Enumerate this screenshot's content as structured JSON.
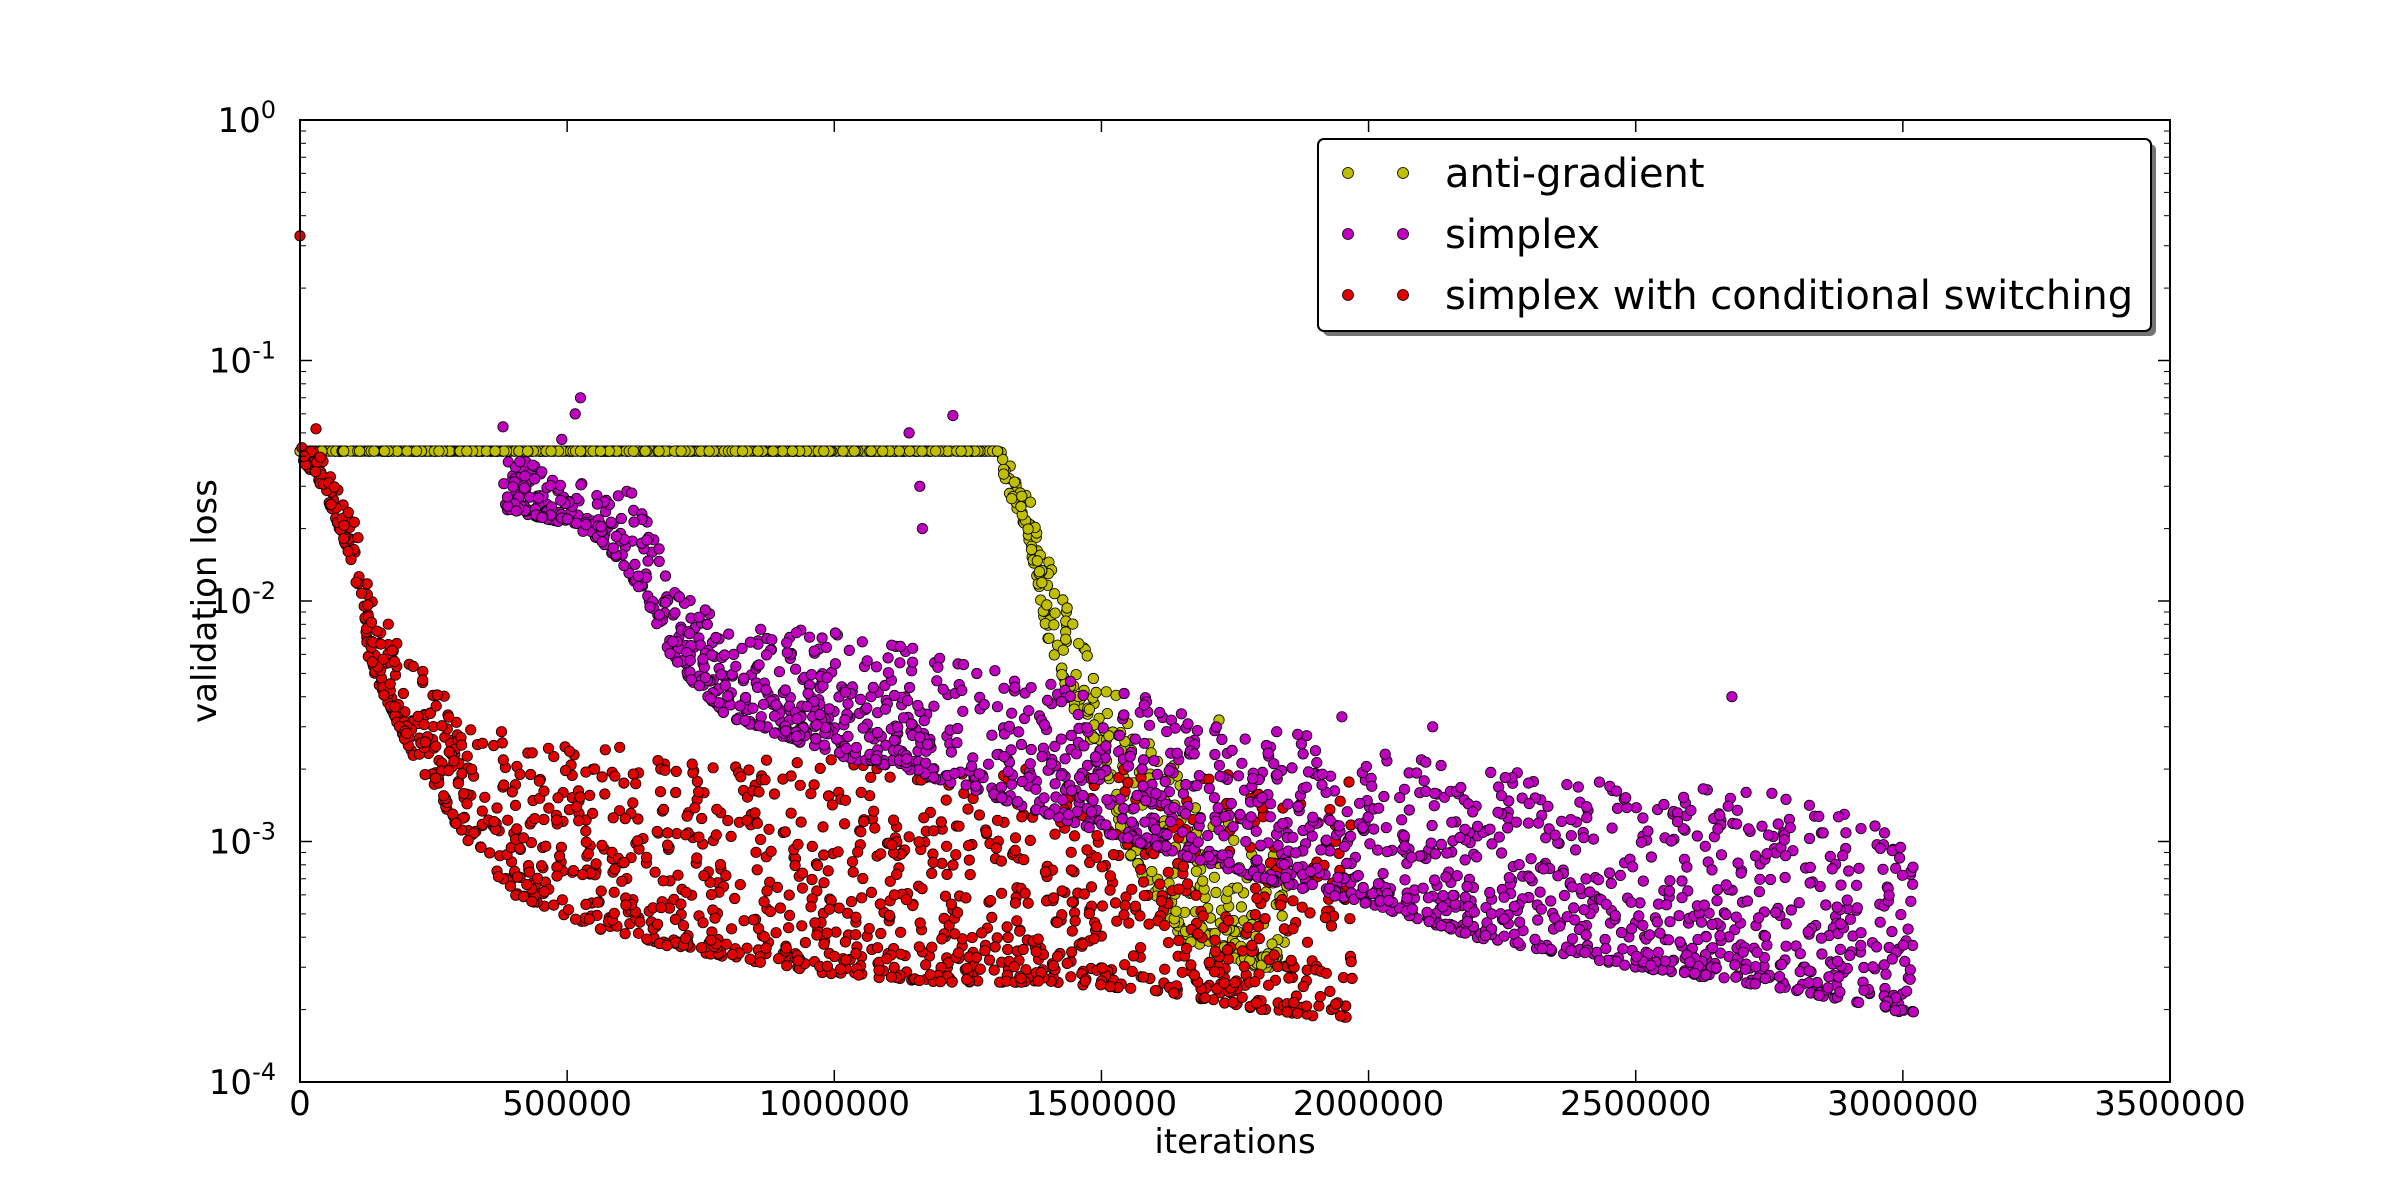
{
  "chart_data": {
    "type": "scatter",
    "title": "",
    "xlabel": "iterations",
    "ylabel": "validation loss",
    "xlim": [
      0,
      3500000
    ],
    "ylim": [
      0.0001,
      1
    ],
    "yscale": "log",
    "grid": false,
    "legend_position": "top-right",
    "x_ticks": [
      "0",
      "500000",
      "1000000",
      "1500000",
      "2000000",
      "2500000",
      "3000000",
      "3500000"
    ],
    "y_ticks": [
      {
        "base": "10",
        "exp": "0"
      },
      {
        "base": "10",
        "exp": "-1"
      },
      {
        "base": "10",
        "exp": "-2"
      },
      {
        "base": "10",
        "exp": "-3"
      },
      {
        "base": "10",
        "exp": "-4"
      }
    ],
    "series": [
      {
        "name": "anti-gradient",
        "color": "#bfbf00",
        "trend": [
          {
            "x": 0,
            "y": 0.042,
            "y_low": 0.042
          },
          {
            "x": 1310000,
            "y": 0.042,
            "y_low": 0.042
          },
          {
            "x": 1320000,
            "y": 0.04,
            "y_low": 0.03
          },
          {
            "x": 1360000,
            "y": 0.03,
            "y_low": 0.02
          },
          {
            "x": 1400000,
            "y": 0.015,
            "y_low": 0.007
          },
          {
            "x": 1450000,
            "y": 0.008,
            "y_low": 0.0035
          },
          {
            "x": 1500000,
            "y": 0.005,
            "y_low": 0.0022
          },
          {
            "x": 1550000,
            "y": 0.0035,
            "y_low": 0.0009
          },
          {
            "x": 1650000,
            "y": 0.002,
            "y_low": 0.0004
          },
          {
            "x": 1750000,
            "y": 0.0012,
            "y_low": 0.0003
          },
          {
            "x": 1850000,
            "y": 0.0008,
            "y_low": 0.0003
          }
        ],
        "outliers": [
          {
            "x": 1720000,
            "y": 0.0032
          }
        ]
      },
      {
        "name": "simplex",
        "color": "#bf00bf",
        "trend": [
          {
            "x": 380000,
            "y": 0.042,
            "y_low": 0.024
          },
          {
            "x": 500000,
            "y": 0.032,
            "y_low": 0.021
          },
          {
            "x": 560000,
            "y": 0.03,
            "y_low": 0.018
          },
          {
            "x": 640000,
            "y": 0.028,
            "y_low": 0.011
          },
          {
            "x": 700000,
            "y": 0.012,
            "y_low": 0.0055
          },
          {
            "x": 800000,
            "y": 0.008,
            "y_low": 0.0033
          },
          {
            "x": 1000000,
            "y": 0.0075,
            "y_low": 0.0023
          },
          {
            "x": 1200000,
            "y": 0.006,
            "y_low": 0.0018
          },
          {
            "x": 1500000,
            "y": 0.0045,
            "y_low": 0.0011
          },
          {
            "x": 1800000,
            "y": 0.003,
            "y_low": 0.0007
          },
          {
            "x": 2000000,
            "y": 0.0025,
            "y_low": 0.00055
          },
          {
            "x": 2200000,
            "y": 0.002,
            "y_low": 0.0004
          },
          {
            "x": 2500000,
            "y": 0.0018,
            "y_low": 0.0003
          },
          {
            "x": 2800000,
            "y": 0.0016,
            "y_low": 0.00024
          },
          {
            "x": 3020000,
            "y": 0.001,
            "y_low": 0.00019
          }
        ],
        "outliers": [
          {
            "x": 380000,
            "y": 0.053
          },
          {
            "x": 490000,
            "y": 0.047
          },
          {
            "x": 525000,
            "y": 0.07
          },
          {
            "x": 515000,
            "y": 0.06
          },
          {
            "x": 1140000,
            "y": 0.05
          },
          {
            "x": 1160000,
            "y": 0.03
          },
          {
            "x": 1165000,
            "y": 0.02
          },
          {
            "x": 1222000,
            "y": 0.059
          },
          {
            "x": 1950000,
            "y": 0.0033
          },
          {
            "x": 2120000,
            "y": 0.003
          },
          {
            "x": 2680000,
            "y": 0.004
          }
        ]
      },
      {
        "name": "simplex with conditional switching",
        "color": "#e00000",
        "trend": [
          {
            "x": 0,
            "y": 0.043,
            "y_low": 0.04
          },
          {
            "x": 30000,
            "y": 0.05,
            "y_low": 0.032
          },
          {
            "x": 60000,
            "y": 0.032,
            "y_low": 0.024
          },
          {
            "x": 100000,
            "y": 0.025,
            "y_low": 0.014
          },
          {
            "x": 130000,
            "y": 0.011,
            "y_low": 0.0055
          },
          {
            "x": 200000,
            "y": 0.006,
            "y_low": 0.0025
          },
          {
            "x": 300000,
            "y": 0.0035,
            "y_low": 0.0011
          },
          {
            "x": 400000,
            "y": 0.0028,
            "y_low": 0.0006
          },
          {
            "x": 600000,
            "y": 0.0025,
            "y_low": 0.0004
          },
          {
            "x": 800000,
            "y": 0.0023,
            "y_low": 0.00033
          },
          {
            "x": 1000000,
            "y": 0.0022,
            "y_low": 0.00028
          },
          {
            "x": 1200000,
            "y": 0.0021,
            "y_low": 0.00026
          },
          {
            "x": 1400000,
            "y": 0.0021,
            "y_low": 0.00026
          },
          {
            "x": 1600000,
            "y": 0.002,
            "y_low": 0.00024
          },
          {
            "x": 1800000,
            "y": 0.0019,
            "y_low": 0.0002
          },
          {
            "x": 1970000,
            "y": 0.0018,
            "y_low": 0.00018
          }
        ],
        "outliers": [
          {
            "x": 0,
            "y": 0.33
          },
          {
            "x": 30000,
            "y": 0.052
          }
        ]
      }
    ]
  }
}
